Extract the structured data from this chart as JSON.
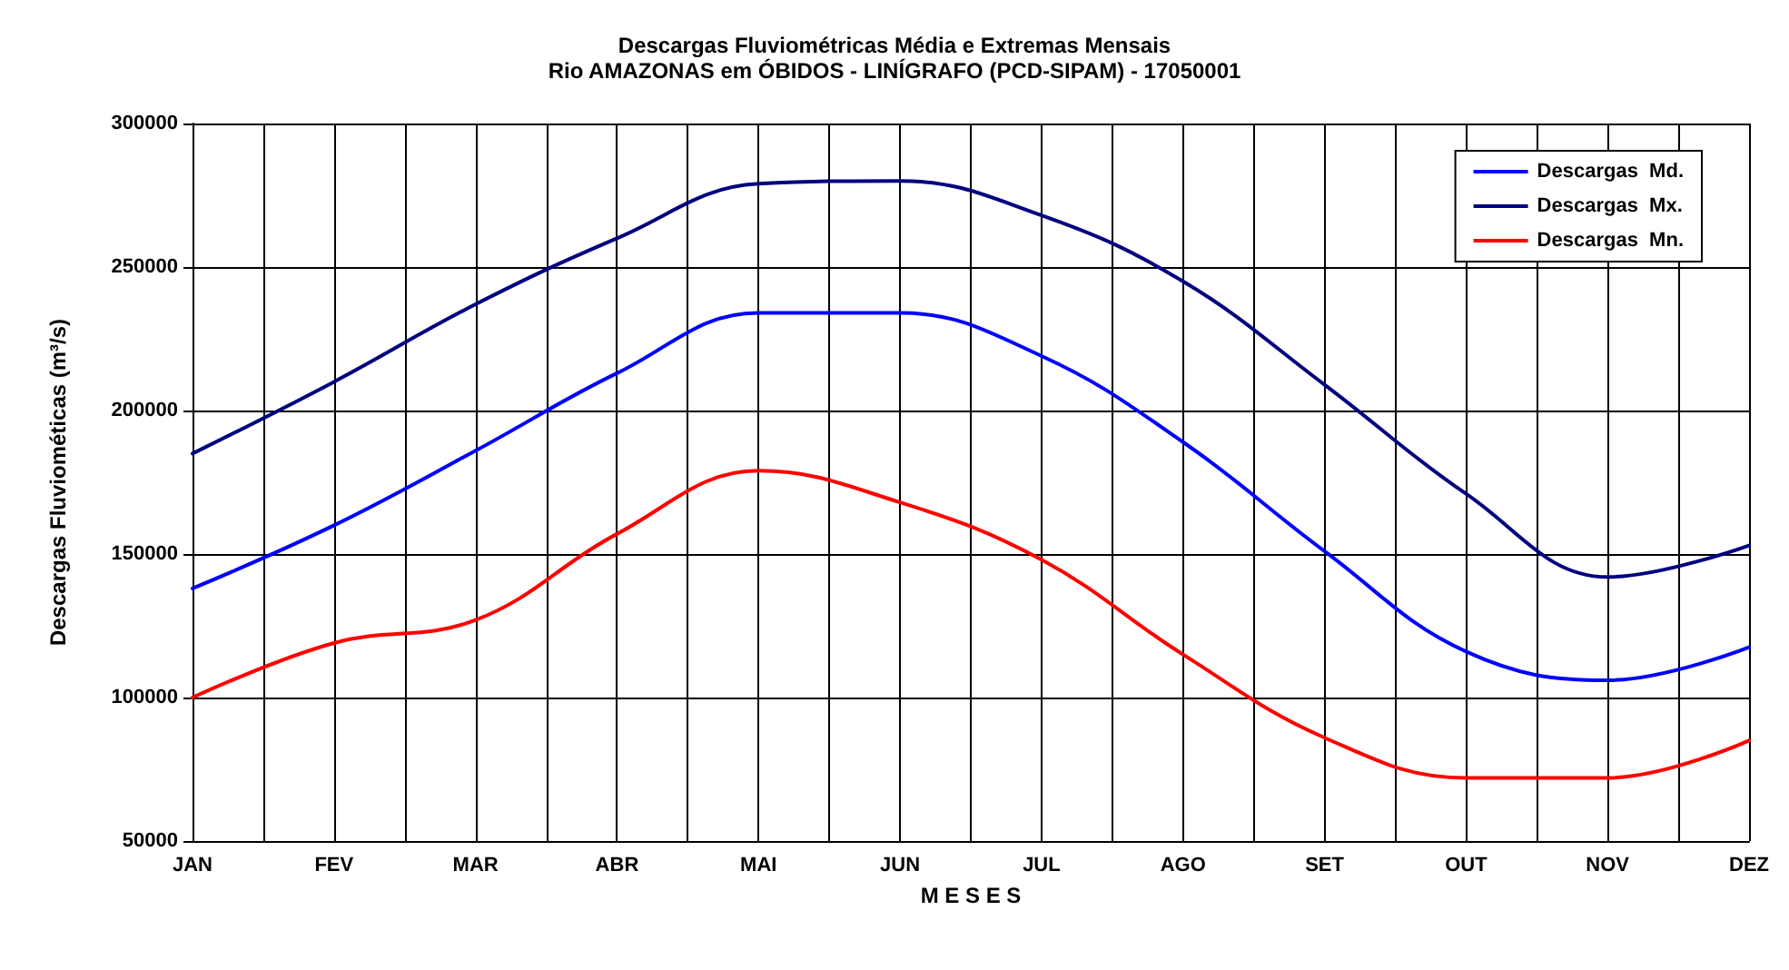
{
  "chart_data": {
    "type": "line",
    "title": "Descargas Fluviométricas Média e Extremas Mensais",
    "subtitle": "Rio AMAZONAS em ÓBIDOS - LINÍGRAFO (PCD-SIPAM) - 17050001",
    "xlabel": "M E S E S",
    "ylabel": "Descargas Fluviométicas (m³/s)",
    "categories": [
      "JAN",
      "FEV",
      "MAR",
      "ABR",
      "MAI",
      "JUN",
      "JUL",
      "AGO",
      "SET",
      "OUT",
      "NOV",
      "DEZ"
    ],
    "series": [
      {
        "name": "Descargas  Md.",
        "color": "#0000ff",
        "values": [
          138000,
          160000,
          186000,
          213000,
          234000,
          234000,
          219000,
          189000,
          151000,
          116000,
          106000,
          117500
        ]
      },
      {
        "name": "Descargas  Mx.",
        "color": "#000080",
        "values": [
          185000,
          210000,
          237000,
          260000,
          279000,
          280000,
          268000,
          245000,
          209000,
          171000,
          142000,
          153000
        ]
      },
      {
        "name": "Descargas  Mn.",
        "color": "#ff0000",
        "values": [
          100000,
          119000,
          127000,
          157000,
          179000,
          168000,
          148000,
          115000,
          86000,
          72000,
          72000,
          85000
        ]
      }
    ],
    "ylim": [
      50000,
      300000
    ],
    "yticks": [
      50000,
      100000,
      150000,
      200000,
      250000,
      300000
    ],
    "grid": true,
    "legend": "top right",
    "marker": "none",
    "line_style": "solid"
  }
}
